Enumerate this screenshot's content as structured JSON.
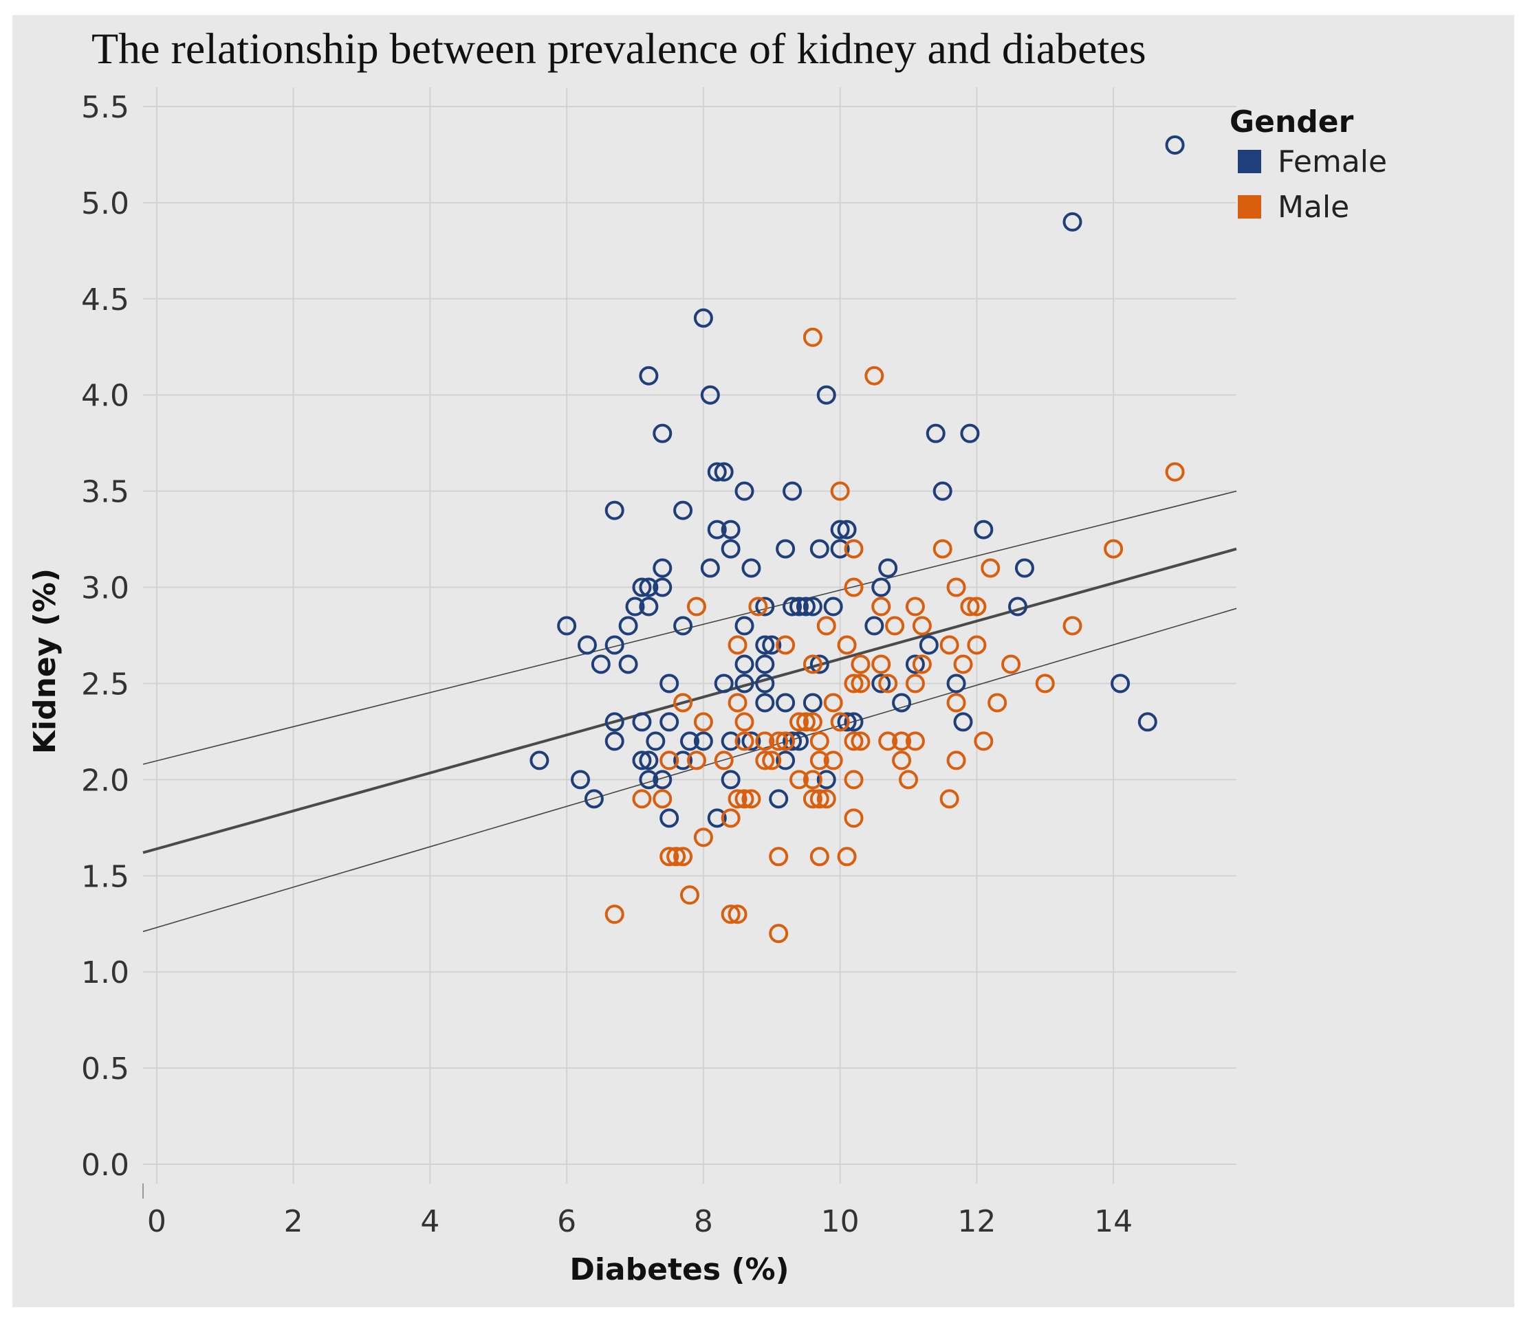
{
  "chart_data": {
    "type": "scatter",
    "title": "The relationship between prevalence of kidney and diabetes",
    "xlabel": "Diabetes (%)",
    "ylabel": "Kidney (%)",
    "xlim": [
      -0.2,
      15.8
    ],
    "ylim": [
      -0.1,
      5.6
    ],
    "x_ticks": [
      "0",
      "2",
      "4",
      "6",
      "8",
      "10",
      "12",
      "14"
    ],
    "x_tick_values": [
      0,
      2,
      4,
      6,
      8,
      10,
      12,
      14
    ],
    "y_ticks": [
      "0.0",
      "0.5",
      "1.0",
      "1.5",
      "2.0",
      "2.5",
      "3.0",
      "3.5",
      "4.0",
      "4.5",
      "5.0",
      "5.5"
    ],
    "y_tick_values": [
      0,
      0.5,
      1.0,
      1.5,
      2.0,
      2.5,
      3.0,
      3.5,
      4.0,
      4.5,
      5.0,
      5.5
    ],
    "grid": true,
    "legend": {
      "title": "Gender",
      "position": "top-right"
    },
    "series": [
      {
        "name": "Female",
        "color": "#1f3f7a",
        "points": [
          [
            14.9,
            5.3
          ],
          [
            13.4,
            4.9
          ],
          [
            8.0,
            4.4
          ],
          [
            7.2,
            4.1
          ],
          [
            8.1,
            4.0
          ],
          [
            9.8,
            4.0
          ],
          [
            7.4,
            3.8
          ],
          [
            11.4,
            3.8
          ],
          [
            11.9,
            3.8
          ],
          [
            8.2,
            3.6
          ],
          [
            8.3,
            3.6
          ],
          [
            8.6,
            3.5
          ],
          [
            9.3,
            3.5
          ],
          [
            11.5,
            3.5
          ],
          [
            6.7,
            3.4
          ],
          [
            7.7,
            3.4
          ],
          [
            8.2,
            3.3
          ],
          [
            8.4,
            3.3
          ],
          [
            10.0,
            3.3
          ],
          [
            10.1,
            3.3
          ],
          [
            12.1,
            3.3
          ],
          [
            8.4,
            3.2
          ],
          [
            9.2,
            3.2
          ],
          [
            9.7,
            3.2
          ],
          [
            10.0,
            3.2
          ],
          [
            7.4,
            3.1
          ],
          [
            8.1,
            3.1
          ],
          [
            8.7,
            3.1
          ],
          [
            10.7,
            3.1
          ],
          [
            12.7,
            3.1
          ],
          [
            7.1,
            3.0
          ],
          [
            7.2,
            3.0
          ],
          [
            7.4,
            3.0
          ],
          [
            10.6,
            3.0
          ],
          [
            7.0,
            2.9
          ],
          [
            7.2,
            2.9
          ],
          [
            8.9,
            2.9
          ],
          [
            9.3,
            2.9
          ],
          [
            9.4,
            2.9
          ],
          [
            9.5,
            2.9
          ],
          [
            9.6,
            2.9
          ],
          [
            9.9,
            2.9
          ],
          [
            12.6,
            2.9
          ],
          [
            6.0,
            2.8
          ],
          [
            6.9,
            2.8
          ],
          [
            7.7,
            2.8
          ],
          [
            8.6,
            2.8
          ],
          [
            10.5,
            2.8
          ],
          [
            6.3,
            2.7
          ],
          [
            6.7,
            2.7
          ],
          [
            8.9,
            2.7
          ],
          [
            9.0,
            2.7
          ],
          [
            11.3,
            2.7
          ],
          [
            6.5,
            2.6
          ],
          [
            6.9,
            2.6
          ],
          [
            8.6,
            2.6
          ],
          [
            8.9,
            2.6
          ],
          [
            9.7,
            2.6
          ],
          [
            11.1,
            2.6
          ],
          [
            7.5,
            2.5
          ],
          [
            8.3,
            2.5
          ],
          [
            8.6,
            2.5
          ],
          [
            8.9,
            2.5
          ],
          [
            10.6,
            2.5
          ],
          [
            11.7,
            2.5
          ],
          [
            14.1,
            2.5
          ],
          [
            8.9,
            2.4
          ],
          [
            9.2,
            2.4
          ],
          [
            9.6,
            2.4
          ],
          [
            10.9,
            2.4
          ],
          [
            6.7,
            2.3
          ],
          [
            7.1,
            2.3
          ],
          [
            7.5,
            2.3
          ],
          [
            10.1,
            2.3
          ],
          [
            10.2,
            2.3
          ],
          [
            11.8,
            2.3
          ],
          [
            14.5,
            2.3
          ],
          [
            6.7,
            2.2
          ],
          [
            7.3,
            2.2
          ],
          [
            7.8,
            2.2
          ],
          [
            8.0,
            2.2
          ],
          [
            8.4,
            2.2
          ],
          [
            8.7,
            2.2
          ],
          [
            9.3,
            2.2
          ],
          [
            9.4,
            2.2
          ],
          [
            5.6,
            2.1
          ],
          [
            7.1,
            2.1
          ],
          [
            7.2,
            2.1
          ],
          [
            7.7,
            2.1
          ],
          [
            9.2,
            2.1
          ],
          [
            6.2,
            2.0
          ],
          [
            7.2,
            2.0
          ],
          [
            7.4,
            2.0
          ],
          [
            8.4,
            2.0
          ],
          [
            9.8,
            2.0
          ],
          [
            6.4,
            1.9
          ],
          [
            9.1,
            1.9
          ],
          [
            7.5,
            1.8
          ],
          [
            8.2,
            1.8
          ]
        ]
      },
      {
        "name": "Male",
        "color": "#d95f0e",
        "points": [
          [
            9.6,
            4.3
          ],
          [
            10.5,
            4.1
          ],
          [
            14.9,
            3.6
          ],
          [
            10.0,
            3.5
          ],
          [
            10.2,
            3.2
          ],
          [
            11.5,
            3.2
          ],
          [
            14.0,
            3.2
          ],
          [
            10.2,
            3.0
          ],
          [
            11.7,
            3.0
          ],
          [
            12.2,
            3.1
          ],
          [
            7.9,
            2.9
          ],
          [
            8.8,
            2.9
          ],
          [
            10.6,
            2.9
          ],
          [
            11.1,
            2.9
          ],
          [
            11.9,
            2.9
          ],
          [
            12.0,
            2.9
          ],
          [
            9.8,
            2.8
          ],
          [
            10.8,
            2.8
          ],
          [
            11.2,
            2.8
          ],
          [
            13.4,
            2.8
          ],
          [
            8.5,
            2.7
          ],
          [
            9.2,
            2.7
          ],
          [
            10.1,
            2.7
          ],
          [
            11.6,
            2.7
          ],
          [
            12.0,
            2.7
          ],
          [
            9.6,
            2.6
          ],
          [
            10.3,
            2.6
          ],
          [
            10.6,
            2.6
          ],
          [
            11.2,
            2.6
          ],
          [
            11.8,
            2.6
          ],
          [
            12.5,
            2.6
          ],
          [
            10.2,
            2.5
          ],
          [
            10.3,
            2.5
          ],
          [
            10.7,
            2.5
          ],
          [
            11.1,
            2.5
          ],
          [
            13.0,
            2.5
          ],
          [
            7.7,
            2.4
          ],
          [
            8.5,
            2.4
          ],
          [
            9.9,
            2.4
          ],
          [
            11.7,
            2.4
          ],
          [
            12.3,
            2.4
          ],
          [
            8.0,
            2.3
          ],
          [
            8.6,
            2.3
          ],
          [
            9.4,
            2.3
          ],
          [
            9.5,
            2.3
          ],
          [
            9.6,
            2.3
          ],
          [
            10.0,
            2.3
          ],
          [
            8.6,
            2.2
          ],
          [
            8.9,
            2.2
          ],
          [
            9.1,
            2.2
          ],
          [
            9.2,
            2.2
          ],
          [
            9.7,
            2.2
          ],
          [
            10.2,
            2.2
          ],
          [
            10.3,
            2.2
          ],
          [
            10.7,
            2.2
          ],
          [
            10.9,
            2.2
          ],
          [
            11.1,
            2.2
          ],
          [
            12.1,
            2.2
          ],
          [
            7.5,
            2.1
          ],
          [
            7.9,
            2.1
          ],
          [
            8.3,
            2.1
          ],
          [
            8.9,
            2.1
          ],
          [
            9.0,
            2.1
          ],
          [
            9.7,
            2.1
          ],
          [
            9.9,
            2.1
          ],
          [
            10.9,
            2.1
          ],
          [
            11.7,
            2.1
          ],
          [
            9.4,
            2.0
          ],
          [
            9.6,
            2.0
          ],
          [
            10.2,
            2.0
          ],
          [
            11.0,
            2.0
          ],
          [
            7.1,
            1.9
          ],
          [
            7.4,
            1.9
          ],
          [
            8.5,
            1.9
          ],
          [
            8.6,
            1.9
          ],
          [
            8.7,
            1.9
          ],
          [
            9.6,
            1.9
          ],
          [
            9.7,
            1.9
          ],
          [
            9.8,
            1.9
          ],
          [
            11.6,
            1.9
          ],
          [
            8.4,
            1.8
          ],
          [
            10.2,
            1.8
          ],
          [
            8.0,
            1.7
          ],
          [
            7.5,
            1.6
          ],
          [
            7.6,
            1.6
          ],
          [
            7.7,
            1.6
          ],
          [
            9.1,
            1.6
          ],
          [
            9.7,
            1.6
          ],
          [
            10.1,
            1.6
          ],
          [
            7.8,
            1.4
          ],
          [
            6.7,
            1.3
          ],
          [
            8.4,
            1.3
          ],
          [
            8.5,
            1.3
          ],
          [
            9.1,
            1.2
          ]
        ]
      }
    ],
    "trend_line": {
      "intercept": 1.64,
      "slope": 0.0987,
      "x_range": [
        -0.2,
        15.8
      ]
    },
    "confidence_band": {
      "upper": [
        [
          -0.2,
          2.08
        ],
        [
          15.8,
          3.5
        ]
      ],
      "lower": [
        [
          -0.2,
          1.21
        ],
        [
          15.8,
          2.89
        ]
      ]
    }
  }
}
